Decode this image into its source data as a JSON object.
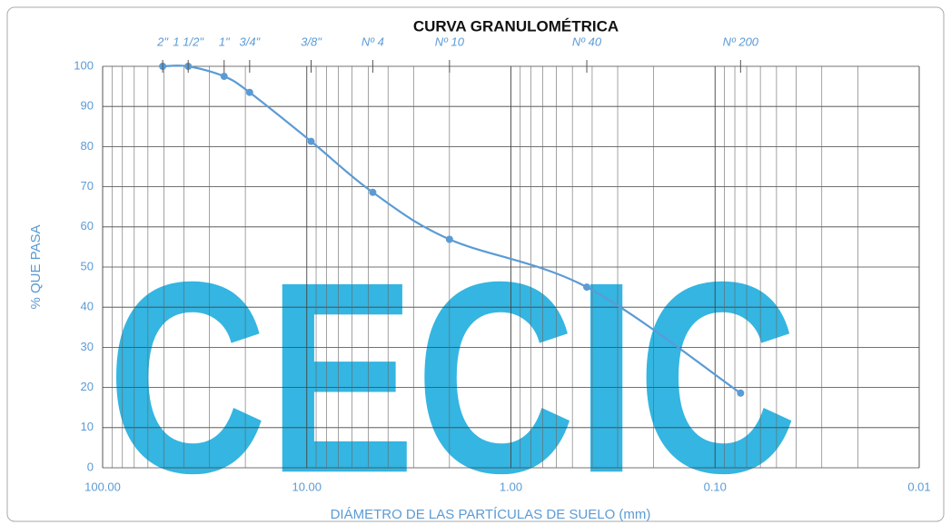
{
  "chart_data": {
    "type": "line",
    "title": "CURVA GRANULOMÉTRICA",
    "xlabel": "DIÁMETRO DE LAS PARTÍCULAS DE SUELO (mm)",
    "ylabel": "% QUE PASA",
    "watermark": "CECIC",
    "x": [
      50.8,
      38.1,
      25.4,
      19.05,
      9.525,
      4.75,
      2.0,
      0.425,
      0.075
    ],
    "sieve_labels": [
      "2\"",
      "1 1/2\"",
      "1\"",
      "3/4\"",
      "3/8\"",
      "Nº 4",
      "Nº 10",
      "Nº 40",
      "Nº 200"
    ],
    "values": [
      100,
      100,
      97.5,
      93.5,
      81.3,
      68.6,
      56.9,
      45.0,
      18.6
    ],
    "color": "#5b9bd5",
    "log_x": true,
    "xlim": [
      100,
      0.01
    ],
    "xticks": [
      {
        "value": 100,
        "label": "100.00"
      },
      {
        "value": 10,
        "label": "10.00"
      },
      {
        "value": 1,
        "label": "1.00"
      },
      {
        "value": 0.1,
        "label": "0.10"
      },
      {
        "value": 0.01,
        "label": "0.01"
      }
    ],
    "xminorticks": [
      90,
      80,
      70,
      60,
      50,
      40,
      30,
      20,
      9,
      8,
      7,
      6,
      5,
      4,
      3,
      2,
      0.9,
      0.8,
      0.7,
      0.6,
      0.5,
      0.4,
      0.3,
      0.2,
      0.09,
      0.08,
      0.07,
      0.06,
      0.05,
      0.04,
      0.03,
      0.02
    ],
    "ylim": [
      0,
      100
    ],
    "yticks": [
      0,
      10,
      20,
      30,
      40,
      50,
      60,
      70,
      80,
      90,
      100
    ],
    "grid": true
  }
}
